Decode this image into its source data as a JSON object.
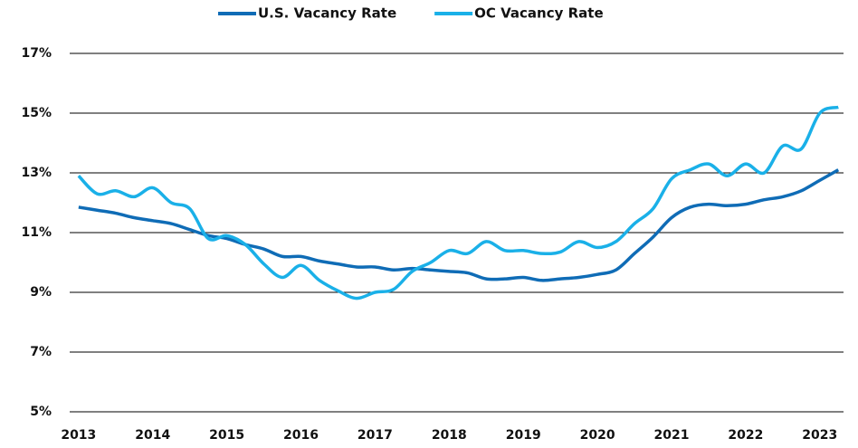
{
  "chart_data": {
    "type": "line",
    "x": [
      2013,
      2013.25,
      2013.5,
      2013.75,
      2014,
      2014.25,
      2014.5,
      2014.75,
      2015,
      2015.25,
      2015.5,
      2015.75,
      2016,
      2016.25,
      2016.5,
      2016.75,
      2017,
      2017.25,
      2017.5,
      2017.75,
      2018,
      2018.25,
      2018.5,
      2018.75,
      2019,
      2019.25,
      2019.5,
      2019.75,
      2020,
      2020.25,
      2020.5,
      2020.75,
      2021,
      2021.25,
      2021.5,
      2021.75,
      2022,
      2022.25,
      2022.5,
      2022.75,
      2023,
      2023.25
    ],
    "series": [
      {
        "name": "U.S. Vacancy Rate",
        "color": "#0f6cb6",
        "values": [
          11.85,
          11.75,
          11.65,
          11.5,
          11.4,
          11.3,
          11.1,
          10.9,
          10.8,
          10.6,
          10.45,
          10.2,
          10.2,
          10.05,
          9.95,
          9.85,
          9.85,
          9.75,
          9.8,
          9.75,
          9.7,
          9.65,
          9.45,
          9.45,
          9.5,
          9.4,
          9.45,
          9.5,
          9.6,
          9.75,
          10.3,
          10.85,
          11.5,
          11.85,
          11.95,
          11.9,
          11.95,
          12.1,
          12.2,
          12.4,
          12.75,
          13.1
        ]
      },
      {
        "name": "OC Vacancy Rate",
        "color": "#1ab0e8",
        "values": [
          12.9,
          12.3,
          12.4,
          12.2,
          12.5,
          12.0,
          11.8,
          10.8,
          10.9,
          10.6,
          9.95,
          9.5,
          9.9,
          9.4,
          9.05,
          8.8,
          9.0,
          9.1,
          9.7,
          10.0,
          10.4,
          10.3,
          10.7,
          10.4,
          10.4,
          10.3,
          10.35,
          10.7,
          10.5,
          10.7,
          11.3,
          11.8,
          12.8,
          13.1,
          13.3,
          12.9,
          13.3,
          13.0,
          13.9,
          13.8,
          15.0,
          15.2
        ]
      }
    ],
    "xlim": [
      2012.88,
      2023.32
    ],
    "xticks": [
      2013,
      2014,
      2015,
      2016,
      2017,
      2018,
      2019,
      2020,
      2021,
      2022,
      2023
    ],
    "ylim": [
      5,
      17
    ],
    "yticks": [
      {
        "value": 5,
        "label": "5%"
      },
      {
        "value": 7,
        "label": "7%"
      },
      {
        "value": 9,
        "label": "9%"
      },
      {
        "value": 11,
        "label": "11%"
      },
      {
        "value": 13,
        "label": "13%"
      },
      {
        "value": 15,
        "label": "15%"
      },
      {
        "value": 17,
        "label": "17%"
      }
    ],
    "grid": true,
    "legend": "top"
  }
}
